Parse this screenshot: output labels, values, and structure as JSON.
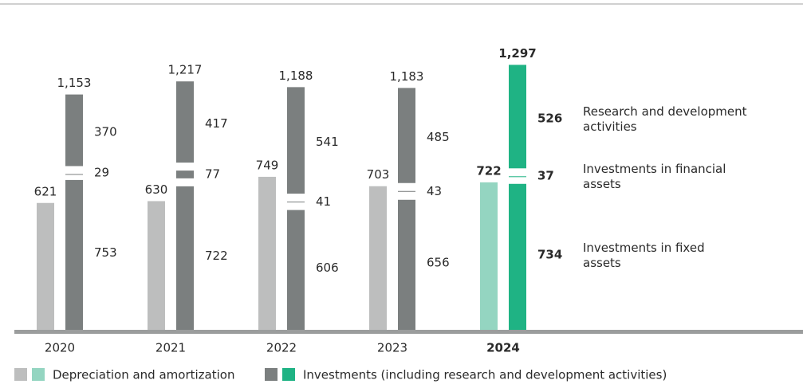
{
  "chart_data": {
    "type": "bar",
    "categories": [
      "2020",
      "2021",
      "2022",
      "2023",
      "2024"
    ],
    "ylim": [
      0,
      1400
    ],
    "series": [
      {
        "name": "Depreciation and amortization",
        "colors": [
          "#bdbebe",
          "#bdbebe",
          "#bdbebe",
          "#bdbebe",
          "#94d5c1"
        ],
        "values": [
          621,
          630,
          749,
          703,
          722
        ]
      },
      {
        "name": "Investments (including research and development activities)",
        "colors": [
          "#7b7f7f",
          "#7b7f7f",
          "#7b7f7f",
          "#7b7f7f",
          "#1fb384"
        ],
        "totals": [
          1153,
          1217,
          1188,
          1183,
          1297
        ],
        "total_labels": [
          "1,153",
          "1,217",
          "1,188",
          "1,183",
          "1,297"
        ],
        "components": [
          {
            "name": "Investments in fixed assets",
            "values": [
              753,
              722,
              606,
              656,
              734
            ]
          },
          {
            "name": "Investments in financial assets",
            "values": [
              29,
              77,
              41,
              43,
              37
            ]
          },
          {
            "name": "Research and development activities",
            "values": [
              370,
              417,
              541,
              485,
              526
            ]
          }
        ]
      }
    ]
  }
}
